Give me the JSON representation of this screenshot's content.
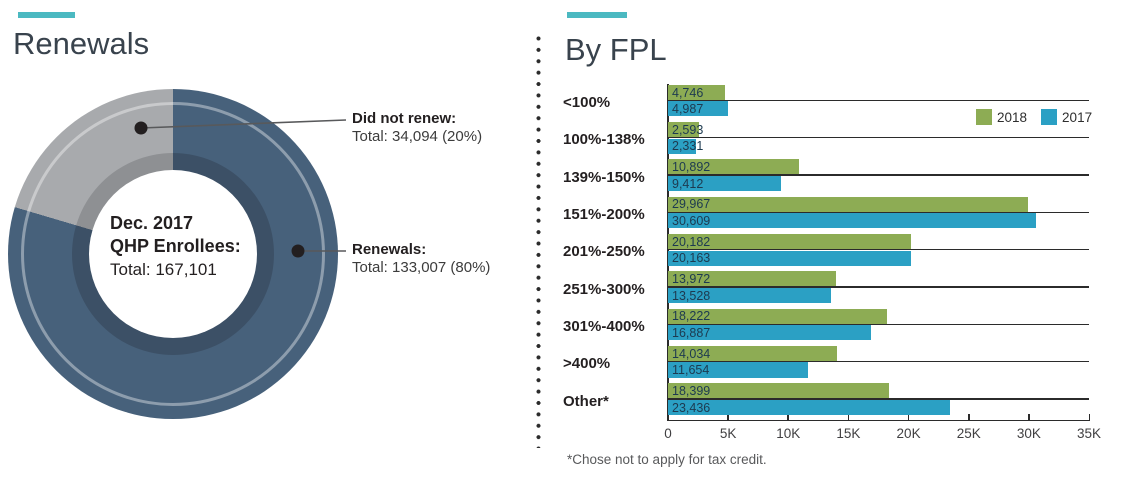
{
  "colors": {
    "teal_accent": "#4BB9C1",
    "green_2018": "#8DAC54",
    "blue_2017": "#2BA0C4",
    "donut_renewals": "#47617B",
    "donut_renewals_inner": "#3C5066",
    "donut_did_not_renew": "#A8AAAD",
    "donut_did_not_renew_inner": "#8E9093",
    "axis_line": "#2b2b2b",
    "value_text": "#1d3a50"
  },
  "left_panel": {
    "title": "Renewals",
    "donut_center": {
      "line1": "Dec. 2017",
      "line2": "QHP Enrollees:",
      "line3": "Total: 167,101"
    },
    "callouts": [
      {
        "label": "Did not renew:",
        "total": "Total: 34,094 (20%)"
      },
      {
        "label": "Renewals:",
        "total": "Total: 133,007 (80%)"
      }
    ]
  },
  "right_panel": {
    "title": "By FPL",
    "legend": [
      {
        "label": "2018",
        "color": "#8DAC54"
      },
      {
        "label": "2017",
        "color": "#2BA0C4"
      }
    ],
    "footnote": "*Chose not to apply for tax credit."
  },
  "chart_data": [
    {
      "type": "pie",
      "subtype": "donut",
      "title": "Renewals",
      "center_label": "Dec. 2017 QHP Enrollees: Total: 167,101",
      "total": 167101,
      "slices": [
        {
          "label": "Renewals",
          "value": 133007,
          "percent": 80,
          "color": "#47617B"
        },
        {
          "label": "Did not renew",
          "value": 34094,
          "percent": 20,
          "color": "#A8AAAD"
        }
      ]
    },
    {
      "type": "bar",
      "orientation": "horizontal",
      "title": "By FPL",
      "categories": [
        "<100%",
        "100%-138%",
        "139%-150%",
        "151%-200%",
        "201%-250%",
        "251%-300%",
        "301%-400%",
        ">400%",
        "Other*"
      ],
      "series": [
        {
          "name": "2018",
          "color": "#8DAC54",
          "values": [
            4746,
            2593,
            10892,
            29967,
            20182,
            13972,
            18222,
            14034,
            18399
          ]
        },
        {
          "name": "2017",
          "color": "#2BA0C4",
          "values": [
            4987,
            2331,
            9412,
            30609,
            20163,
            13528,
            16887,
            11654,
            23436
          ]
        }
      ],
      "value_labels": {
        "2018": [
          "4,746",
          "2,593",
          "10,892",
          "29,967",
          "20,182",
          "13,972",
          "18,222",
          "14,034",
          "18,399"
        ],
        "2017": [
          "4,987",
          "2,331",
          "9,412",
          "30,609",
          "20,163",
          "13,528",
          "16,887",
          "11,654",
          "23,436"
        ]
      },
      "xlabel": "",
      "ylabel": "",
      "xlim": [
        0,
        35000
      ],
      "x_ticks": [
        "0",
        "5K",
        "10K",
        "15K",
        "20K",
        "25K",
        "30K",
        "35K"
      ],
      "grid": "per-category horizontal lines",
      "legend_position": "top-right",
      "footnote": "*Chose not to apply for tax credit."
    }
  ]
}
